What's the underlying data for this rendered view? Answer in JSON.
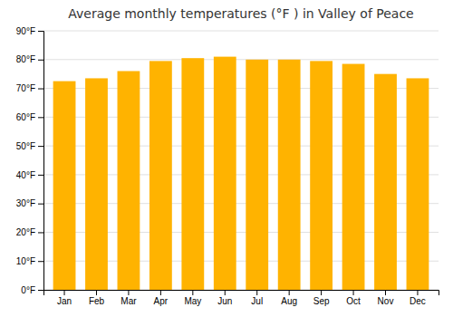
{
  "chart_data": {
    "type": "bar",
    "title": "Average monthly temperatures (°F ) in Valley of Peace",
    "categories": [
      "Jan",
      "Feb",
      "Mar",
      "Apr",
      "May",
      "Jun",
      "Jul",
      "Aug",
      "Sep",
      "Oct",
      "Nov",
      "Dec"
    ],
    "values": [
      72.5,
      73.5,
      76.0,
      79.5,
      80.5,
      81.0,
      80.0,
      80.0,
      79.5,
      78.5,
      75.0,
      73.5
    ],
    "color": "#FFB300",
    "ylim": [
      0,
      90
    ],
    "yticks": [
      {
        "value": 0,
        "label": "0°F"
      },
      {
        "value": 10,
        "label": "10°F"
      },
      {
        "value": 20,
        "label": "20°F"
      },
      {
        "value": 30,
        "label": "30°F"
      },
      {
        "value": 40,
        "label": "40°F"
      },
      {
        "value": 50,
        "label": "50°F"
      },
      {
        "value": 60,
        "label": "60°F"
      },
      {
        "value": 70,
        "label": "70°F"
      },
      {
        "value": 80,
        "label": "80°F"
      },
      {
        "value": 90,
        "label": "90°F"
      }
    ],
    "grid": true
  }
}
